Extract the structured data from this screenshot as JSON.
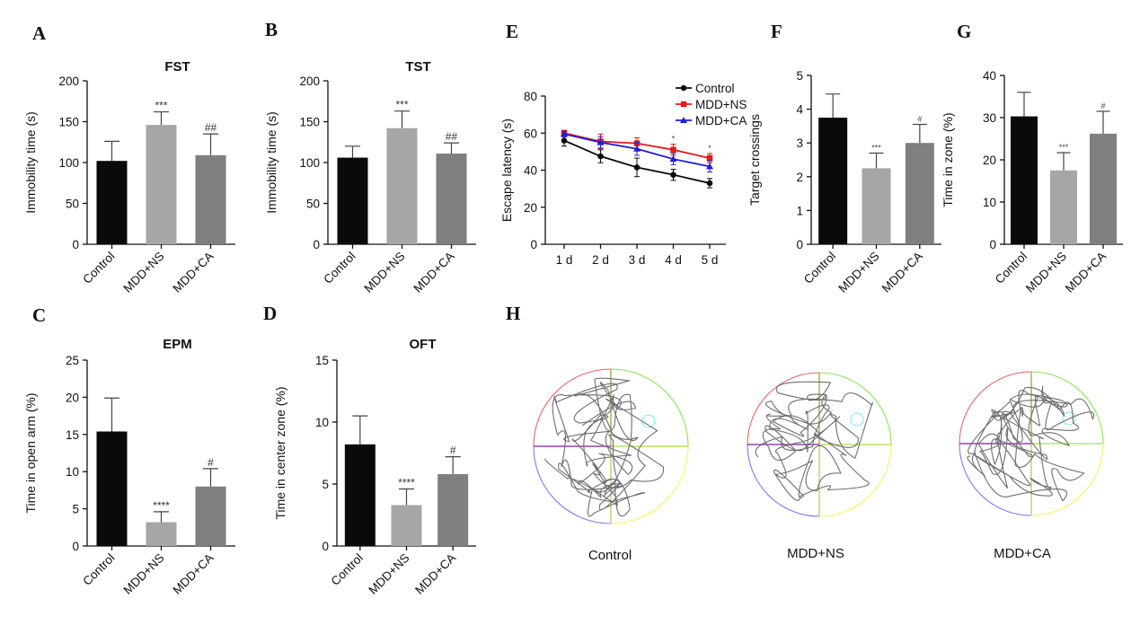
{
  "panels": [
    {
      "letter": "A"
    },
    {
      "letter": "B"
    },
    {
      "letter": "C"
    },
    {
      "letter": "D"
    },
    {
      "letter": "E"
    },
    {
      "letter": "F"
    },
    {
      "letter": "G"
    },
    {
      "letter": "H"
    }
  ],
  "colors": {
    "control": "#0a0a0a",
    "ns": "#a6a6a6",
    "ca": "#7f7f7f",
    "ns_line": "#e31a1c",
    "ca_line": "#1f1fd6"
  },
  "chart_data": [
    {
      "id": "A",
      "type": "bar",
      "title": "FST",
      "ylabel": "Immobility time (s)",
      "categories": [
        "Control",
        "MDD+NS",
        "MDD+CA"
      ],
      "values": [
        102,
        146,
        109
      ],
      "errors": [
        24,
        16,
        26
      ],
      "significance": [
        "",
        "***",
        "##"
      ],
      "ylim": [
        0,
        200
      ],
      "yticks": [
        "0",
        "50",
        "100",
        "150",
        "200"
      ]
    },
    {
      "id": "B",
      "type": "bar",
      "title": "TST",
      "ylabel": "Immobility time (s)",
      "categories": [
        "Control",
        "MDD+NS",
        "MDD+CA"
      ],
      "values": [
        106,
        142,
        111
      ],
      "errors": [
        14,
        21,
        13
      ],
      "significance": [
        "",
        "***",
        "##"
      ],
      "ylim": [
        0,
        200
      ],
      "yticks": [
        "0",
        "50",
        "100",
        "150",
        "200"
      ]
    },
    {
      "id": "C",
      "type": "bar",
      "title": "EPM",
      "ylabel": "Time in open arm (%)",
      "categories": [
        "Control",
        "MDD+NS",
        "MDD+CA"
      ],
      "values": [
        15.4,
        3.2,
        8.0
      ],
      "errors": [
        4.5,
        1.4,
        2.4
      ],
      "significance": [
        "",
        "****",
        "#"
      ],
      "ylim": [
        0,
        25
      ],
      "yticks": [
        "0",
        "5",
        "10",
        "15",
        "20",
        "25"
      ]
    },
    {
      "id": "D",
      "type": "bar",
      "title": "OFT",
      "ylabel": "Time in center zone (%)",
      "categories": [
        "Control",
        "MDD+NS",
        "MDD+CA"
      ],
      "values": [
        8.2,
        3.3,
        5.8
      ],
      "errors": [
        2.3,
        1.3,
        1.4
      ],
      "significance": [
        "",
        "****",
        "#"
      ],
      "ylim": [
        0,
        15
      ],
      "yticks": [
        "0",
        "5",
        "10",
        "15"
      ]
    },
    {
      "id": "E",
      "type": "line",
      "title": "",
      "ylabel": "Escape latency (s)",
      "x": [
        "1 d",
        "2 d",
        "3 d",
        "4 d",
        "5 d"
      ],
      "ylim": [
        0,
        80
      ],
      "yticks": [
        "0",
        "20",
        "40",
        "60",
        "80"
      ],
      "series": [
        {
          "name": "Control",
          "values": [
            56,
            47.5,
            41.5,
            37.5,
            33
          ],
          "errors": [
            3,
            3.5,
            5,
            3,
            2.5
          ],
          "marker": "circle"
        },
        {
          "name": "MDD+NS",
          "values": [
            60,
            55.5,
            54.5,
            51,
            46.5
          ],
          "errors": [
            1.5,
            4,
            3,
            3,
            2.5
          ],
          "marker": "square"
        },
        {
          "name": "MDD+CA",
          "values": [
            59.5,
            55,
            51.5,
            46,
            42
          ],
          "errors": [
            1.5,
            3,
            3.5,
            3,
            3
          ],
          "marker": "triangle"
        }
      ],
      "significance": [
        {
          "x": "4 d",
          "label": "*"
        },
        {
          "x": "5 d",
          "label": "*"
        }
      ],
      "legend": "top-right"
    },
    {
      "id": "F",
      "type": "bar",
      "title": "",
      "ylabel": "Target crossings",
      "categories": [
        "Control",
        "MDD+NS",
        "MDD+CA"
      ],
      "values": [
        3.75,
        2.25,
        3.0
      ],
      "errors": [
        0.7,
        0.45,
        0.55
      ],
      "significance": [
        "",
        "***",
        "#"
      ],
      "ylim": [
        0,
        5
      ],
      "yticks": [
        "0",
        "1",
        "2",
        "3",
        "4",
        "5"
      ]
    },
    {
      "id": "G",
      "type": "bar",
      "title": "",
      "ylabel": "Time in zone (%)",
      "categories": [
        "Control",
        "MDD+NS",
        "MDD+CA"
      ],
      "values": [
        30.3,
        17.5,
        26.2
      ],
      "errors": [
        5.7,
        4.2,
        5.3
      ],
      "significance": [
        "",
        "***",
        "#"
      ],
      "ylim": [
        0,
        40
      ],
      "yticks": [
        "0",
        "10",
        "20",
        "30",
        "40"
      ]
    }
  ],
  "maze": {
    "labels": [
      "Control",
      "MDD+NS",
      "MDD+CA"
    ]
  }
}
